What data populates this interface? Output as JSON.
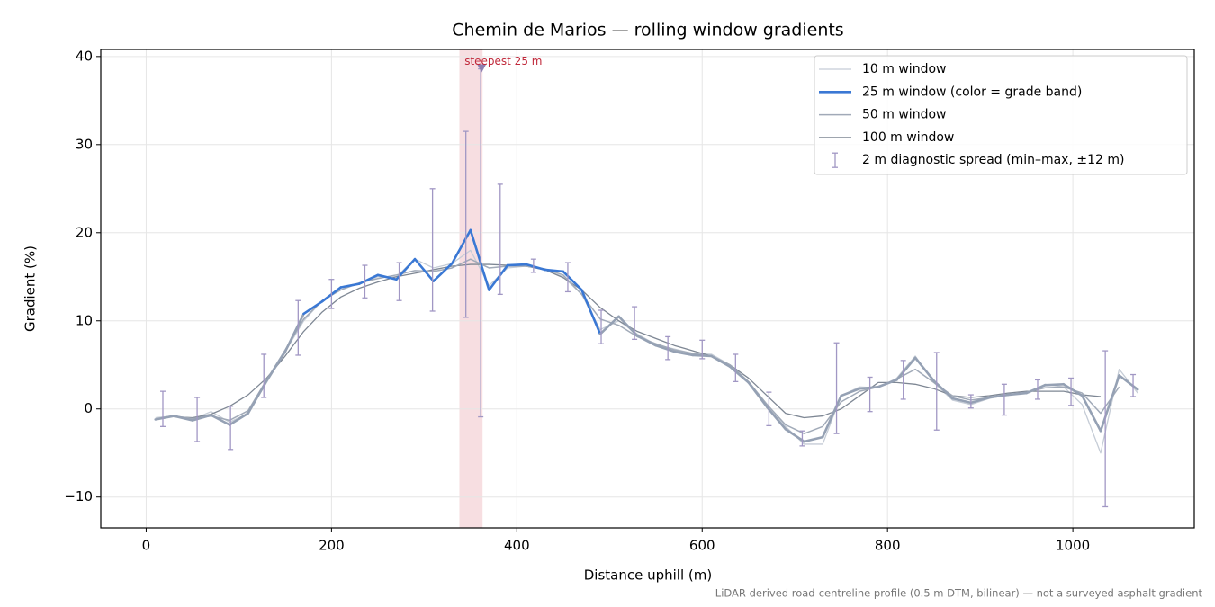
{
  "chart_data": {
    "type": "line",
    "title": "Chemin de Marios — rolling window gradients",
    "xlabel": "Distance uphill (m)",
    "ylabel": "Gradient (%)",
    "footnote": "LiDAR-derived road-centreline profile (0.5 m DTM, bilinear) — not a surveyed asphalt gradient",
    "x": [
      10,
      30,
      50,
      70,
      90,
      110,
      130,
      150,
      170,
      190,
      210,
      230,
      250,
      270,
      290,
      310,
      330,
      350,
      370,
      390,
      410,
      430,
      450,
      470,
      490,
      510,
      530,
      550,
      570,
      590,
      610,
      630,
      650,
      670,
      690,
      710,
      730,
      750,
      770,
      790,
      810,
      830,
      850,
      870,
      890,
      910,
      930,
      950,
      970,
      990,
      1010,
      1030,
      1050,
      1070
    ],
    "series": [
      {
        "name": "10 m window",
        "color": "#c5ccd6",
        "width": 1.3,
        "values": [
          -1,
          -0.8,
          -1.2,
          -0.3,
          -1.5,
          -0.5,
          3,
          6.5,
          10,
          12.3,
          13.8,
          14.3,
          15,
          15,
          17,
          16,
          16.5,
          18,
          14,
          16,
          16.2,
          15.8,
          15,
          13,
          9,
          10,
          8.5,
          7.3,
          6.8,
          6.3,
          6.2,
          5,
          3,
          0.5,
          -2,
          -4,
          -4,
          1.5,
          2.5,
          2.4,
          3.5,
          6,
          3,
          1,
          0.5,
          1.2,
          1.6,
          1.8,
          2.8,
          2.5,
          0.5,
          -5,
          4.5,
          1.8
        ]
      },
      {
        "name": "25 m window (color = grade band)",
        "color": "#3a78d4",
        "width": 2.6,
        "values": [
          -1.2,
          -0.8,
          -1.3,
          -0.7,
          -1.8,
          -0.5,
          3.2,
          6.5,
          10.8,
          12.2,
          13.8,
          14.2,
          15.2,
          14.7,
          17,
          14.5,
          16.5,
          20.3,
          13.5,
          16.3,
          16.4,
          15.8,
          15.6,
          13.5,
          8.5,
          10.5,
          8.3,
          7.2,
          6.5,
          6.1,
          6,
          4.8,
          3,
          0.2,
          -2.3,
          -3.7,
          -3.2,
          1.5,
          2.3,
          2.5,
          3.3,
          5.8,
          3.2,
          1.2,
          0.7,
          1.3,
          1.6,
          1.8,
          2.7,
          2.8,
          1.5,
          -2.5,
          3.8,
          2.2
        ]
      },
      {
        "name": "50 m window",
        "color": "#a1aab8",
        "width": 1.5,
        "values": [
          null,
          -0.8,
          -1.1,
          -0.8,
          -1.3,
          -0.2,
          3.3,
          6.7,
          10.2,
          12.3,
          13.5,
          14.3,
          14.8,
          15.2,
          15.7,
          15.6,
          16,
          17,
          16,
          16.2,
          16.2,
          15.9,
          15.2,
          13,
          10.2,
          9.5,
          8.2,
          7.4,
          6.7,
          6.3,
          6,
          5,
          3.1,
          0.5,
          -1.8,
          -2.8,
          -2,
          0.8,
          2,
          2.5,
          3.4,
          4.5,
          3,
          1.5,
          1,
          1.3,
          1.6,
          1.9,
          2.4,
          2.5,
          1.8,
          -0.5,
          2.5,
          null
        ]
      },
      {
        "name": "100 m window",
        "color": "#7e8794",
        "width": 1.3,
        "values": [
          null,
          -0.9,
          -1,
          -0.6,
          0.3,
          1.6,
          3.5,
          6,
          8.8,
          11,
          12.7,
          13.7,
          14.4,
          15,
          15.4,
          15.8,
          16.2,
          16.4,
          16.4,
          16.3,
          16.2,
          15.8,
          14.9,
          13.5,
          11.5,
          10,
          8.8,
          8,
          7.2,
          6.6,
          6,
          5,
          3.5,
          1.5,
          -0.5,
          -1,
          -0.8,
          0,
          1.5,
          3,
          3,
          2.8,
          2.3,
          1.5,
          1.3,
          1.5,
          1.8,
          2,
          2,
          2,
          1.6,
          1.4,
          null,
          null
        ]
      }
    ],
    "band": {
      "threshold": 10,
      "below_color": "#95a1b4"
    },
    "error_bars": {
      "name": "2 m diagnostic spread (min–max, ±12 m)",
      "color": "#a197c4",
      "x": [
        18,
        55,
        91,
        127,
        164,
        200,
        236,
        273,
        309,
        345,
        361,
        382,
        418,
        455,
        491,
        527,
        563,
        600,
        636,
        672,
        708,
        745,
        781,
        817,
        853,
        890,
        926,
        962,
        998,
        1035,
        1065
      ],
      "values": [
        -0.3,
        -1.2,
        -1.5,
        3.7,
        9.5,
        13,
        14.2,
        14.8,
        16,
        16,
        17,
        16,
        16.3,
        15,
        9,
        9,
        7,
        6.5,
        5,
        0,
        -3,
        2,
        1.8,
        3,
        3,
        0.8,
        1.4,
        2,
        2,
        -2,
        2.5
      ],
      "lower": [
        -2,
        -3.7,
        -4.6,
        1.3,
        6.1,
        11.4,
        12.6,
        12.3,
        11.1,
        10.4,
        -0.9,
        13,
        15.5,
        13.3,
        7.4,
        7.9,
        5.6,
        5.7,
        3.1,
        -1.9,
        -4.2,
        -2.8,
        -0.3,
        1.1,
        -2.4,
        0.1,
        -0.7,
        1.1,
        0.4,
        -11.1,
        1.4
      ],
      "upper": [
        2,
        1.3,
        0.3,
        6.2,
        12.3,
        14.7,
        16.3,
        16.6,
        25,
        31.5,
        38.6,
        25.5,
        17,
        16.6,
        11.2,
        11.6,
        8.2,
        7.8,
        6.2,
        1.9,
        -2.5,
        7.5,
        3.6,
        5.5,
        6.4,
        1.6,
        2.8,
        3.3,
        3.5,
        6.6,
        3.9
      ]
    },
    "highlight": {
      "x": [
        338,
        363
      ],
      "color": "#e8a0a8"
    },
    "annotation": {
      "text": "steepest 25 m",
      "x": 362,
      "y": 38.6,
      "color": "#c0283a",
      "marker_color": "#8d7fb0"
    },
    "xlim": [
      -49,
      1131
    ],
    "ylim": [
      -13.5,
      40.8
    ],
    "xticks": [
      0,
      200,
      400,
      600,
      800,
      1000
    ],
    "yticks": [
      {
        "value": -10,
        "label": "−10"
      },
      0,
      10,
      20,
      30,
      40
    ],
    "grid": true,
    "legend": "upper right"
  }
}
